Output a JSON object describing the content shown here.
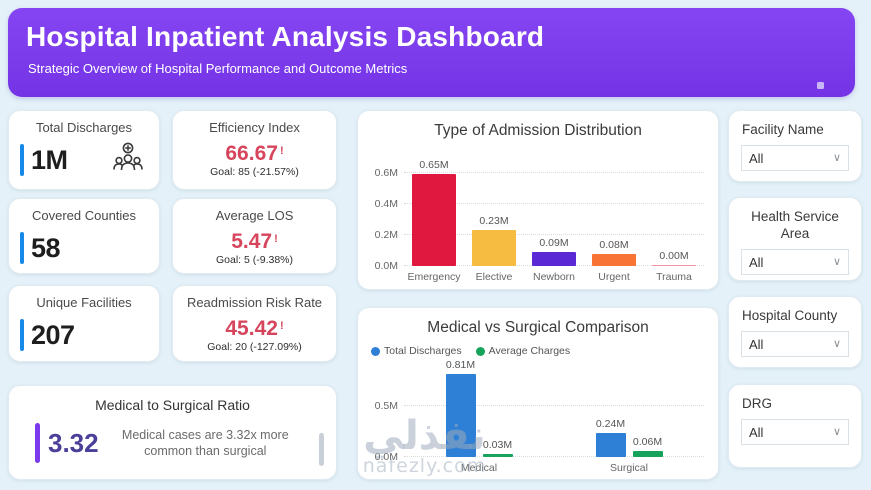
{
  "header": {
    "title": "Hospital Inpatient Analysis Dashboard",
    "subtitle": "Strategic Overview of Hospital Performance and Outcome Metrics"
  },
  "kpi_cards": [
    {
      "title": "Total Discharges",
      "value": "1M",
      "icon": "patients-group-icon"
    },
    {
      "title": "Covered Counties",
      "value": "58"
    },
    {
      "title": "Unique Facilities",
      "value": "207"
    },
    {
      "title": "Efficiency Index",
      "value": "66.67",
      "alert": "!",
      "goal": "Goal: 85 (-21.57%)"
    },
    {
      "title": "Average LOS",
      "value": "5.47",
      "alert": "!",
      "goal": "Goal: 5 (-9.38%)"
    },
    {
      "title": "Readmission Risk Rate",
      "value": "45.42",
      "alert": "!",
      "goal": "Goal: 20 (-127.09%)"
    }
  ],
  "ratio_card": {
    "title": "Medical to Surgical Ratio",
    "value": "3.32",
    "description": "Medical cases are 3.32x more common than surgical"
  },
  "chart_data": [
    {
      "type": "bar",
      "title": "Type of Admission Distribution",
      "categories": [
        "Emergency",
        "Elective",
        "Newborn",
        "Urgent",
        "Trauma"
      ],
      "values": [
        0.65,
        0.23,
        0.09,
        0.08,
        0.002
      ],
      "value_labels": [
        "0.65M",
        "0.23M",
        "0.09M",
        "0.08M",
        "0.00M"
      ],
      "bar_colors": [
        "#E0173F",
        "#F6BB41",
        "#5A28D4",
        "#F87434",
        "#F591A1"
      ],
      "y_ticks": [
        {
          "v": 0,
          "label": "0.0M"
        },
        {
          "v": 0.2,
          "label": "0.2M"
        },
        {
          "v": 0.4,
          "label": "0.4M"
        },
        {
          "v": 0.6,
          "label": "0.6M"
        }
      ],
      "ylim": [
        0,
        0.7
      ],
      "grid": "dotted",
      "unit": "M"
    },
    {
      "type": "bar",
      "title": "Medical vs Surgical Comparison",
      "categories": [
        "Medical",
        "Surgical"
      ],
      "series": [
        {
          "name": "Total Discharges",
          "values": [
            0.81,
            0.24
          ],
          "value_labels": [
            "0.81M",
            "0.24M"
          ],
          "color": "#2E7FD6"
        },
        {
          "name": "Average Charges",
          "values": [
            0.03,
            0.06
          ],
          "value_labels": [
            "0.03M",
            "0.06M"
          ],
          "color": "#17A35B"
        }
      ],
      "y_ticks": [
        {
          "v": 0,
          "label": "0.0M"
        },
        {
          "v": 0.5,
          "label": "0.5M"
        }
      ],
      "ylim": [
        0,
        0.9
      ],
      "grid": "dotted",
      "legend_position": "top-left",
      "unit": "M"
    }
  ],
  "filters": [
    {
      "label": "Facility Name",
      "value": "All"
    },
    {
      "label": "Health Service Area",
      "value": "All"
    },
    {
      "label": "Hospital County",
      "value": "All"
    },
    {
      "label": "DRG",
      "value": "All"
    }
  ],
  "watermark": {
    "arabic": "نفذلي",
    "domain": "nafezly.com"
  },
  "colors": {
    "header_bg": "#7C3AED",
    "page_bg": "#E4F1F8",
    "kpi_accent_blue": "#1789E8",
    "alert_red": "#D6455C",
    "ratio_purple": "#7C3AED",
    "series_blue": "#2E7FD6",
    "series_green": "#17A35B"
  }
}
